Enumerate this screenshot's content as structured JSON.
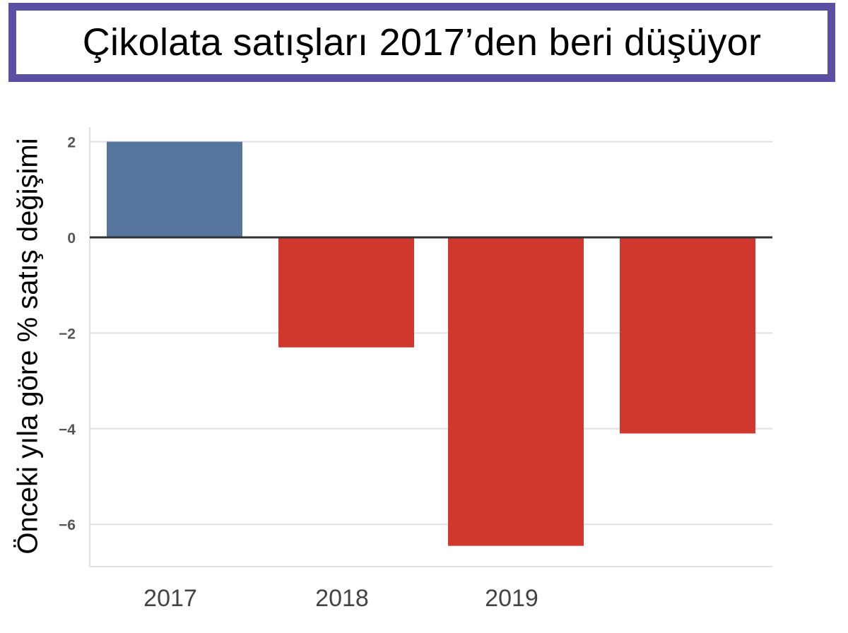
{
  "title": "Çikolata satışları 2017’den beri düşüyor",
  "colors": {
    "frame": "#5a4fa3",
    "positive": "#56759f",
    "negative": "#d0382e",
    "zero_line": "#333333",
    "grid": "#e0e0e0"
  },
  "chart_data": {
    "type": "bar",
    "title": "Çikolata satışları 2017’den beri düşüyor",
    "xlabel": "",
    "ylabel": "Önceki yıla göre % satış değişimi",
    "categories": [
      "2017",
      "2018",
      "2019",
      ""
    ],
    "values": [
      2.0,
      -2.3,
      -6.45,
      -4.1
    ],
    "bar_colors": [
      "#56759f",
      "#d0382e",
      "#d0382e",
      "#d0382e"
    ],
    "yticks": [
      2,
      0,
      -2,
      -4,
      -6
    ],
    "ytick_labels": [
      "2",
      "0",
      "−2",
      "−4",
      "−6"
    ],
    "xtick_labels": [
      "2017",
      "2018",
      "2019"
    ],
    "ylim": [
      -6.9,
      2.4
    ],
    "grid": "horizontal",
    "legend": null
  }
}
